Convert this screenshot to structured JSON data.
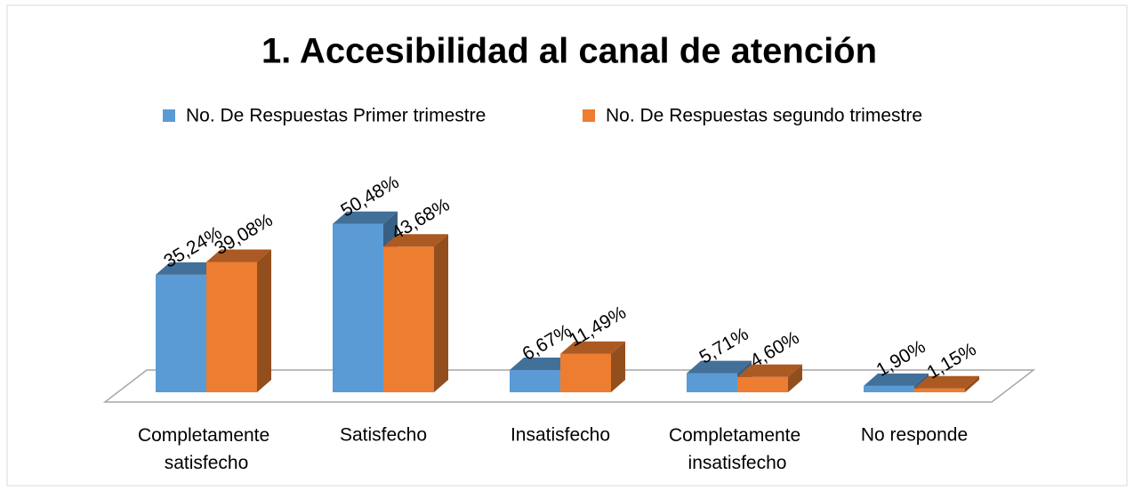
{
  "chart_data": {
    "type": "bar3d",
    "title": "1. Accesibilidad al canal de atención",
    "categories": [
      "Completamente satisfecho",
      "Satisfecho",
      "Insatisfecho",
      "Completamente insatisfecho",
      "No responde"
    ],
    "series": [
      {
        "name": "No. De Respuestas Primer trimestre",
        "color": "#5b9bd5",
        "values": [
          35.24,
          50.48,
          6.67,
          5.71,
          1.9
        ],
        "value_labels": [
          "35,24%",
          "50,48%",
          "6,67%",
          "5,71%",
          "1,90%"
        ]
      },
      {
        "name": "No. De Respuestas segundo trimestre",
        "color": "#ed7d31",
        "values": [
          39.08,
          43.68,
          11.49,
          4.6,
          1.15
        ],
        "value_labels": [
          "39,08%",
          "43,68%",
          "11,49%",
          "4,60%",
          "1,15%"
        ]
      }
    ],
    "legend": "top"
  }
}
